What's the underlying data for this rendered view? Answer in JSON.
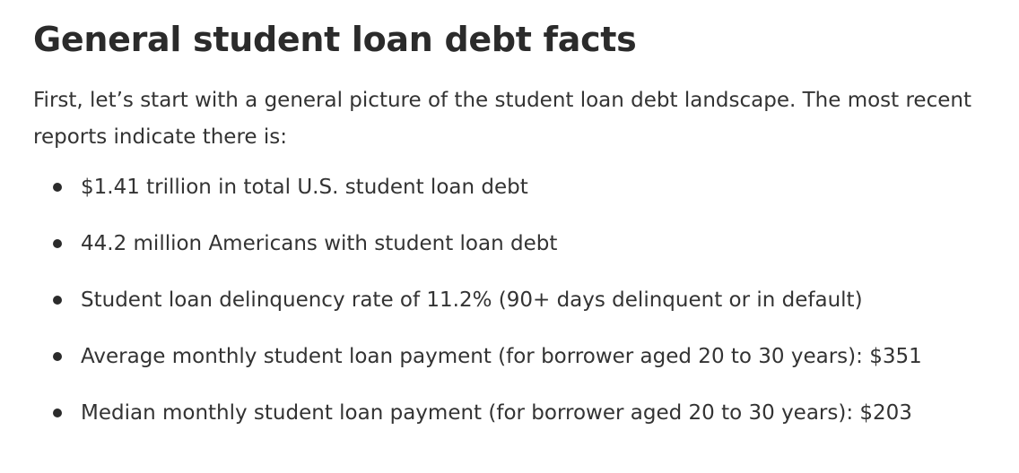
{
  "heading": "General student loan debt facts",
  "intro": "First, let’s start with a general picture of the student loan debt landscape. The most recent reports indicate there is:",
  "facts": [
    "$1.41 trillion in total U.S. student loan debt",
    "44.2 million Americans with student loan debt",
    "Student loan delinquency rate of 11.2% (90+ days delinquent or in default)",
    "Average monthly student loan payment (for borrower aged 20 to 30 years): $351",
    "Median monthly student loan payment (for borrower aged 20 to 30 years): $203"
  ]
}
